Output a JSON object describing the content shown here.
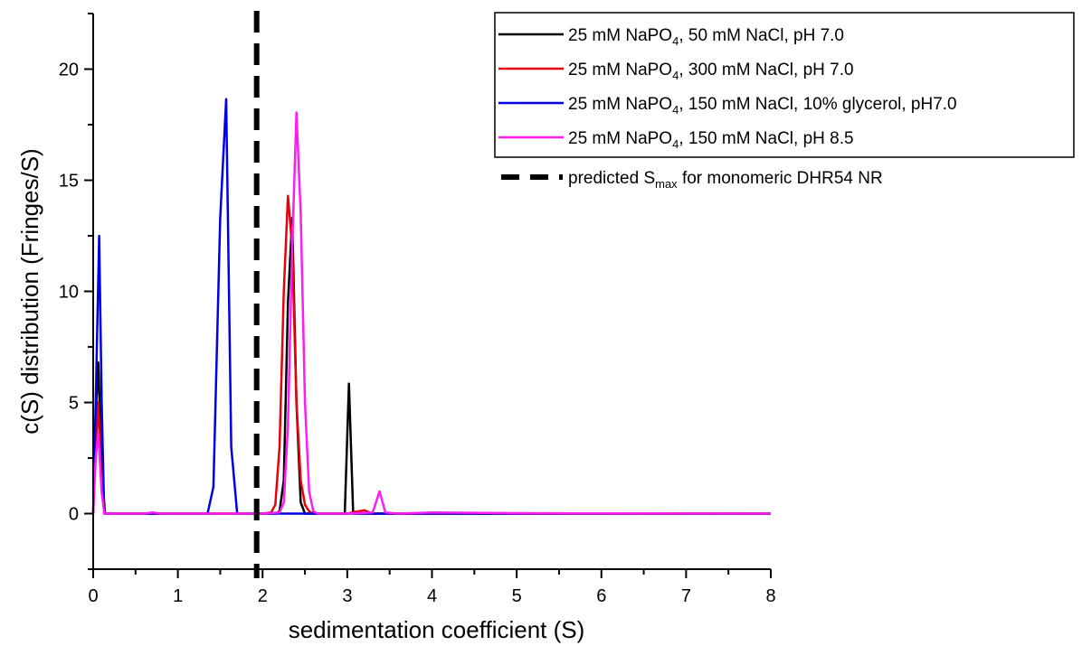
{
  "chart_data": {
    "type": "line",
    "title": "",
    "xlabel": "sedimentation coefficient (S)",
    "ylabel": "c(S) distribution (Fringes/S)",
    "xlim": [
      0,
      8
    ],
    "ylim": [
      -2.5,
      22.5
    ],
    "xticks": [
      0,
      1,
      2,
      3,
      4,
      5,
      6,
      7,
      8
    ],
    "yticks": [
      0,
      5,
      10,
      15,
      20
    ],
    "grid": false,
    "legend_position": "top-right",
    "series": [
      {
        "name": "25 mM NaPO4,   50 mM NaCl, pH 7.0",
        "name_parts": [
          "25 mM NaPO",
          "4",
          ",   50 mM NaCl, pH 7.0"
        ],
        "color": "#000000",
        "x": [
          0,
          0.03,
          0.06,
          0.1,
          0.14,
          0.5,
          1.0,
          1.5,
          2.0,
          2.15,
          2.2,
          2.25,
          2.3,
          2.35,
          2.4,
          2.45,
          2.5,
          2.55,
          2.6,
          2.9,
          2.97,
          3.02,
          3.07,
          3.15,
          4.0,
          5.0,
          6.0,
          7.0,
          8.0
        ],
        "y": [
          0,
          4.5,
          6.8,
          2.0,
          0,
          0,
          0,
          0,
          0,
          0,
          0.1,
          1.5,
          9.5,
          13.3,
          5.0,
          0.5,
          0,
          0,
          0,
          0,
          0,
          5.85,
          0,
          0,
          0,
          0,
          0,
          0,
          0
        ]
      },
      {
        "name": "25 mM NaPO4, 300 mM NaCl, pH 7.0",
        "name_parts": [
          "25 mM NaPO",
          "4",
          ", 300 mM NaCl, pH 7.0"
        ],
        "color": "#e8000b",
        "x": [
          0,
          0.03,
          0.06,
          0.1,
          0.14,
          1.0,
          2.0,
          2.1,
          2.15,
          2.2,
          2.25,
          2.3,
          2.35,
          2.4,
          2.45,
          2.5,
          2.55,
          2.6,
          3.0,
          3.1,
          3.2,
          3.3,
          4.0,
          8.0
        ],
        "y": [
          0,
          3.0,
          5.0,
          1.0,
          0,
          0,
          0,
          0.05,
          0.4,
          3.0,
          10.0,
          14.3,
          12.0,
          5.0,
          1.5,
          0.4,
          0.1,
          0,
          0,
          0.08,
          0.15,
          0,
          0,
          0
        ]
      },
      {
        "name": "25 mM NaPO4, 150 mM NaCl, 10% glycerol, pH7.0",
        "name_parts": [
          "25 mM NaPO",
          "4",
          ", 150 mM NaCl, 10% glycerol, pH7.0"
        ],
        "color": "#0000e6",
        "x": [
          0,
          0.03,
          0.07,
          0.1,
          0.13,
          0.5,
          1.0,
          1.35,
          1.42,
          1.5,
          1.57,
          1.63,
          1.7,
          1.8,
          2.0,
          2.5,
          3.0,
          8.0
        ],
        "y": [
          0,
          5.0,
          12.5,
          5.0,
          0,
          0,
          0,
          0,
          1.2,
          13.3,
          18.65,
          3.0,
          0,
          0,
          0,
          0,
          0,
          0
        ]
      },
      {
        "name": "25 mM NaPO4, 150 mM NaCl, pH 8.5",
        "name_parts": [
          "25 mM NaPO",
          "4",
          ", 150 mM NaCl, pH 8.5"
        ],
        "color": "#ff1cf3",
        "x": [
          0,
          0.03,
          0.06,
          0.1,
          0.13,
          0.6,
          0.7,
          0.8,
          1.0,
          2.0,
          2.2,
          2.25,
          2.3,
          2.35,
          2.4,
          2.45,
          2.5,
          2.55,
          2.6,
          2.65,
          3.0,
          3.3,
          3.38,
          3.45,
          3.6,
          4.0,
          5.0,
          6.0,
          8.0
        ],
        "y": [
          0,
          2.5,
          3.6,
          1.0,
          0,
          0,
          0.05,
          0,
          0,
          0,
          0.05,
          0.5,
          4.0,
          12.0,
          18.05,
          13.5,
          5.0,
          1.0,
          0.1,
          0,
          0,
          0.05,
          1.0,
          0.05,
          0,
          0.05,
          0.02,
          0.01,
          0
        ]
      }
    ],
    "reference_lines": [
      {
        "label": "predicted Smax for monomeric DHR54 NR",
        "label_parts": [
          "predicted S",
          "max",
          " for monomeric DHR54 NR"
        ],
        "x": 1.93,
        "color": "#000000",
        "style": "dashed"
      }
    ]
  }
}
